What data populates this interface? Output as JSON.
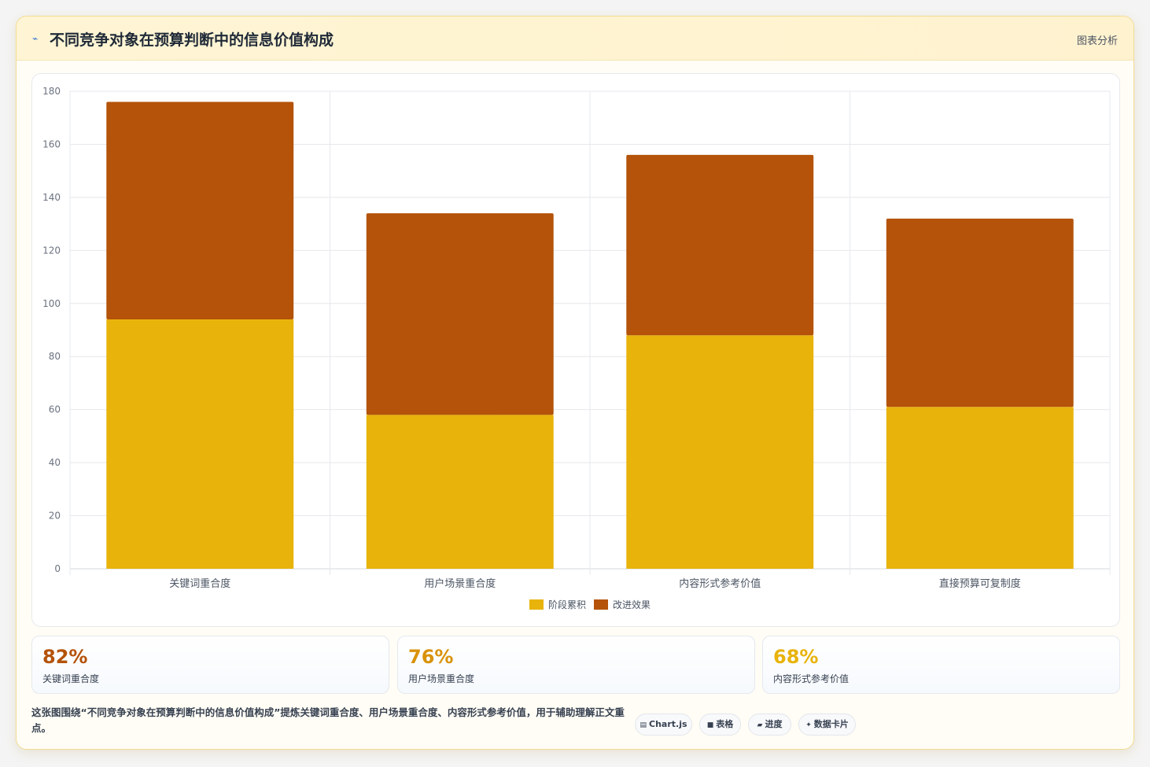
{
  "header": {
    "icon": "chart-icon",
    "title": "不同竞争对象在预算判断中的信息价值构成",
    "tag": "图表分析"
  },
  "chart_data": {
    "type": "bar",
    "stacked": true,
    "categories": [
      "关键词重合度",
      "用户场景重合度",
      "内容形式参考价值",
      "直接预算可复制度"
    ],
    "series": [
      {
        "name": "阶段累积",
        "color": "#e8b30b",
        "values": [
          94,
          58,
          88,
          61
        ]
      },
      {
        "name": "改进效果",
        "color": "#b45309",
        "values": [
          82,
          76,
          68,
          71
        ]
      }
    ],
    "ylim": [
      0,
      180
    ],
    "yticks": [
      0,
      20,
      40,
      60,
      80,
      100,
      120,
      140,
      160,
      180
    ],
    "grid": true,
    "legend_position": "bottom"
  },
  "stats": [
    {
      "value": "82%",
      "label": "关键词重合度",
      "color": "#b45309"
    },
    {
      "value": "76%",
      "label": "用户场景重合度",
      "color": "#d9920a"
    },
    {
      "value": "68%",
      "label": "内容形式参考价值",
      "color": "#e8b30b"
    }
  ],
  "footer": {
    "text": "这张图围绕“不同竞争对象在预算判断中的信息价值构成”提炼关键词重合度、用户场景重合度、内容形式参考价值，用于辅助理解正文重点。"
  },
  "chips": [
    {
      "icon": "grid-icon",
      "glyph": "▤",
      "label": "Chart.js"
    },
    {
      "icon": "table-icon",
      "glyph": "■",
      "label": "表格"
    },
    {
      "icon": "progress-icon",
      "glyph": "▰",
      "label": "进度"
    },
    {
      "icon": "sparkle-icon",
      "glyph": "✦",
      "label": "数据卡片"
    }
  ]
}
